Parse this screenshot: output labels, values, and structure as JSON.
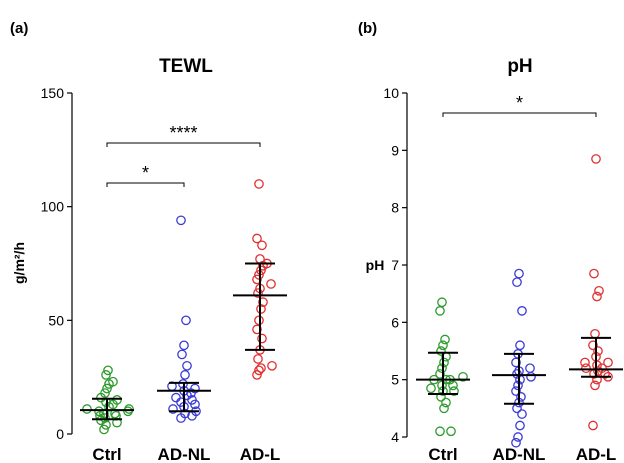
{
  "panel_a": {
    "label": "(a)",
    "chart_data": {
      "type": "scatter",
      "title": "TEWL",
      "ylabel": "g/m²/h",
      "categories": [
        "Ctrl",
        "AD-NL",
        "AD-L"
      ],
      "ylim": [
        0,
        150
      ],
      "yticks": [
        0,
        50,
        100,
        150
      ],
      "colors": [
        "#2e9a2e",
        "#3b3bd6",
        "#e03030"
      ],
      "series": [
        {
          "values": [
            2,
            4,
            5,
            6,
            7,
            8,
            8,
            9,
            9,
            10,
            10,
            11,
            11,
            12,
            13,
            14,
            15,
            16,
            18,
            20,
            22,
            23,
            26,
            28
          ]
        },
        {
          "values": [
            7,
            8,
            9,
            10,
            11,
            12,
            13,
            14,
            15,
            16,
            17,
            18,
            19,
            20,
            21,
            22,
            26,
            30,
            35,
            39,
            50,
            94
          ]
        },
        {
          "values": [
            26,
            28,
            29,
            30,
            33,
            37,
            42,
            46,
            50,
            55,
            58,
            62,
            64,
            66,
            68,
            70,
            72,
            74,
            75,
            77,
            83,
            86,
            110
          ]
        }
      ],
      "summary": [
        {
          "median": 10.5,
          "q1": 6.5,
          "q3": 15.5
        },
        {
          "median": 19,
          "q1": 10,
          "q3": 22.5
        },
        {
          "median": 61,
          "q1": 37,
          "q3": 75
        }
      ],
      "significance": [
        {
          "from": "Ctrl",
          "to": "AD-NL",
          "label": "*"
        },
        {
          "from": "Ctrl",
          "to": "AD-L",
          "label": "****"
        }
      ]
    }
  },
  "panel_b": {
    "label": "(b)",
    "chart_data": {
      "type": "scatter",
      "title": "pH",
      "ylabel": "pH",
      "categories": [
        "Ctrl",
        "AD-NL",
        "AD-L"
      ],
      "ylim": [
        4,
        10
      ],
      "yticks": [
        4,
        5,
        6,
        7,
        8,
        9,
        10
      ],
      "colors": [
        "#2e9a2e",
        "#3b3bd6",
        "#e03030"
      ],
      "series": [
        {
          "values": [
            4.1,
            4.1,
            4.5,
            4.6,
            4.7,
            4.8,
            4.8,
            4.85,
            4.9,
            4.9,
            5.0,
            5.0,
            5.0,
            5.05,
            5.1,
            5.2,
            5.3,
            5.4,
            5.5,
            5.6,
            5.7,
            6.2,
            6.35
          ]
        },
        {
          "values": [
            3.9,
            4.0,
            4.2,
            4.4,
            4.5,
            4.6,
            4.7,
            4.8,
            4.9,
            5.0,
            5.05,
            5.1,
            5.15,
            5.2,
            5.3,
            5.45,
            5.6,
            6.2,
            6.7,
            6.85
          ]
        },
        {
          "values": [
            4.2,
            4.9,
            5.0,
            5.05,
            5.1,
            5.1,
            5.15,
            5.2,
            5.2,
            5.25,
            5.3,
            5.3,
            5.4,
            5.5,
            5.6,
            5.8,
            6.45,
            6.55,
            6.85,
            8.85
          ]
        }
      ],
      "summary": [
        {
          "median": 5.0,
          "q1": 4.75,
          "q3": 5.47
        },
        {
          "median": 5.08,
          "q1": 4.58,
          "q3": 5.45
        },
        {
          "median": 5.18,
          "q1": 5.05,
          "q3": 5.73
        }
      ],
      "significance": [
        {
          "from": "Ctrl",
          "to": "AD-L",
          "label": "*"
        }
      ]
    }
  }
}
